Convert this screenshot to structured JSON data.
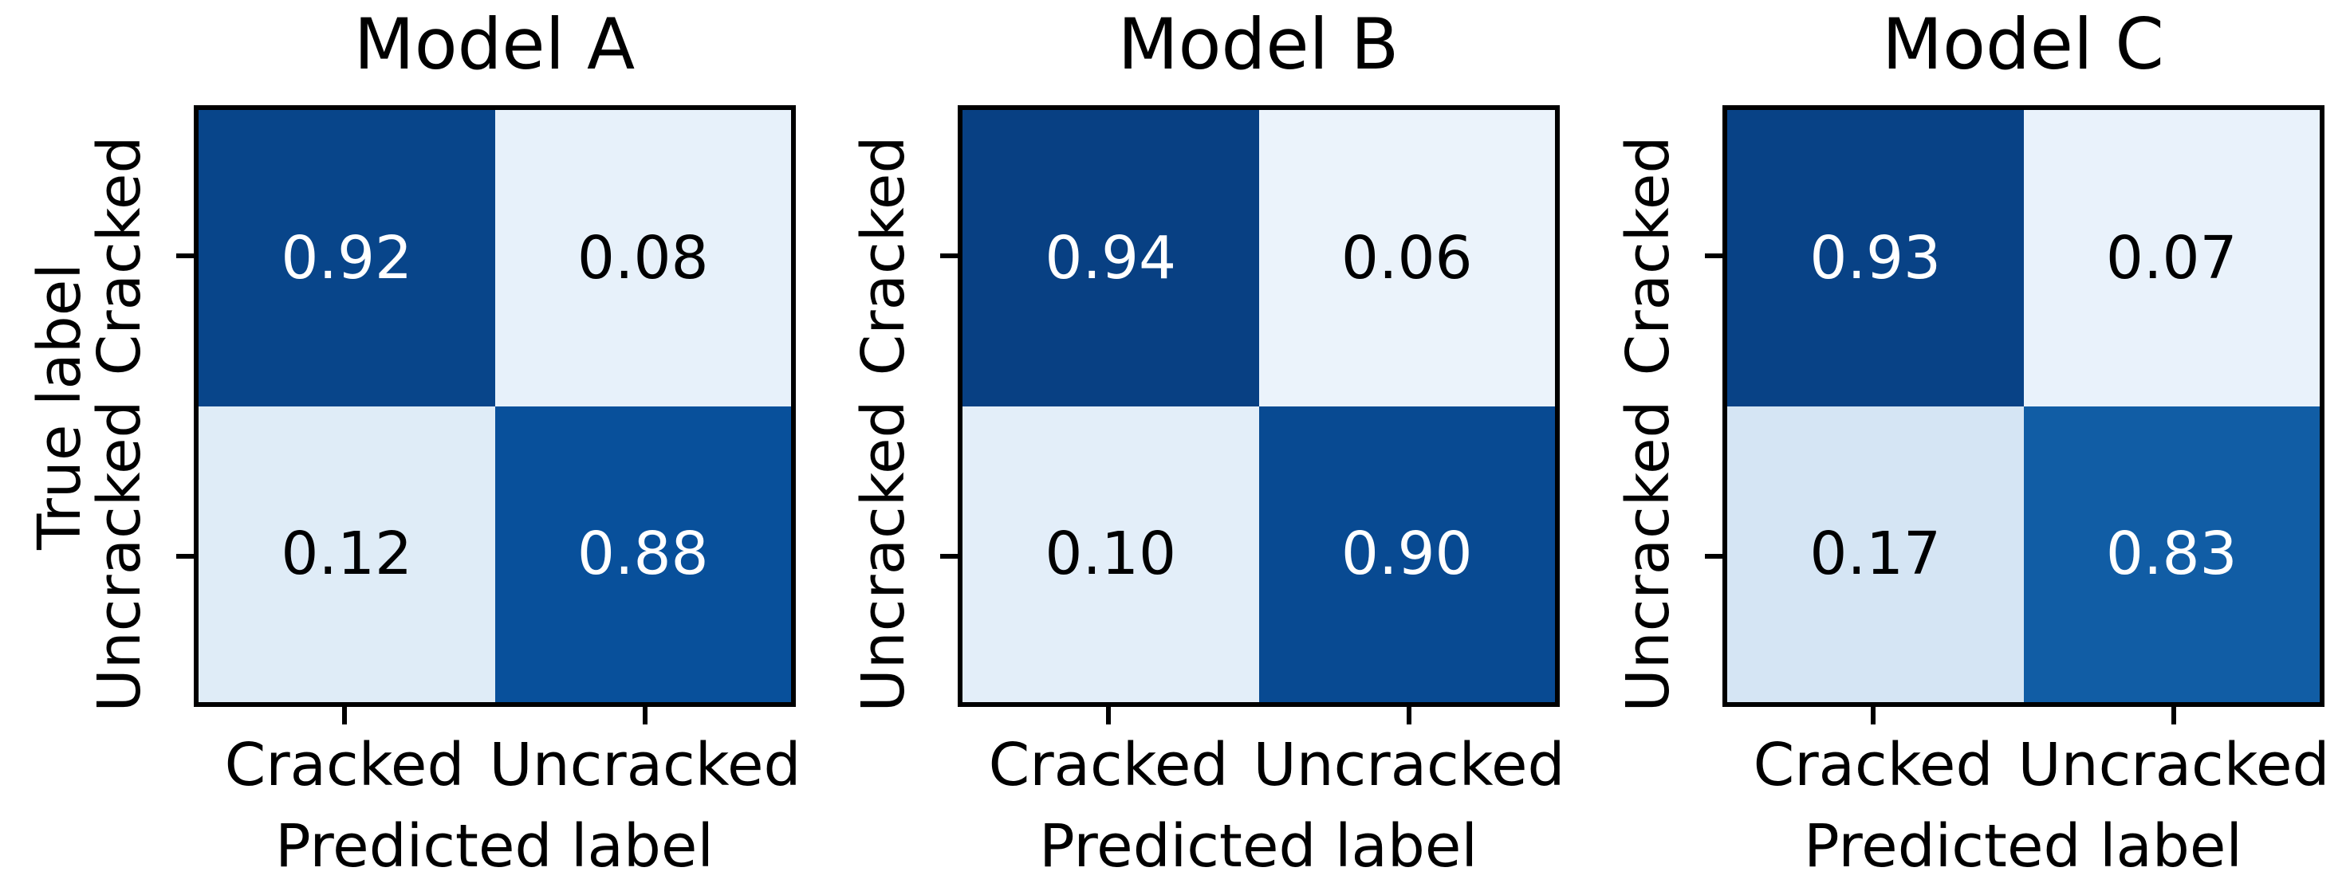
{
  "figure": {
    "background": "#ffffff",
    "text_color": "#000000",
    "border_color": "#000000",
    "colormap": "Blues",
    "panels": [
      {
        "title": "Model A",
        "xlabel": "Predicted label",
        "ylabel": "True label",
        "x_ticks": [
          "Cracked",
          "Uncracked"
        ],
        "y_ticks": [
          "Cracked",
          "Uncracked"
        ],
        "cells": [
          {
            "value": "0.92",
            "bg": "#08458a",
            "fg": "#ffffff"
          },
          {
            "value": "0.08",
            "bg": "#e7f1fa",
            "fg": "#000000"
          },
          {
            "value": "0.12",
            "bg": "#dfecf7",
            "fg": "#000000"
          },
          {
            "value": "0.88",
            "bg": "#08509b",
            "fg": "#ffffff"
          }
        ]
      },
      {
        "title": "Model B",
        "xlabel": "Predicted label",
        "ylabel": "",
        "x_ticks": [
          "Cracked",
          "Uncracked"
        ],
        "y_ticks": [
          "Cracked",
          "Uncracked"
        ],
        "cells": [
          {
            "value": "0.94",
            "bg": "#084083",
            "fg": "#ffffff"
          },
          {
            "value": "0.06",
            "bg": "#ebf3fb",
            "fg": "#000000"
          },
          {
            "value": "0.10",
            "bg": "#e3eef9",
            "fg": "#000000"
          },
          {
            "value": "0.90",
            "bg": "#084a92",
            "fg": "#ffffff"
          }
        ]
      },
      {
        "title": "Model C",
        "xlabel": "Predicted label",
        "ylabel": "",
        "x_ticks": [
          "Cracked",
          "Uncracked"
        ],
        "y_ticks": [
          "Cracked",
          "Uncracked"
        ],
        "cells": [
          {
            "value": "0.93",
            "bg": "#084286",
            "fg": "#ffffff"
          },
          {
            "value": "0.07",
            "bg": "#e9f2fb",
            "fg": "#000000"
          },
          {
            "value": "0.17",
            "bg": "#d5e5f4",
            "fg": "#000000"
          },
          {
            "value": "0.83",
            "bg": "#115da5",
            "fg": "#ffffff"
          }
        ]
      }
    ]
  },
  "chart_data": [
    {
      "type": "heatmap",
      "title": "Model A",
      "xlabel": "Predicted label",
      "ylabel": "True label",
      "x_categories": [
        "Cracked",
        "Uncracked"
      ],
      "y_categories": [
        "Cracked",
        "Uncracked"
      ],
      "values": [
        [
          0.92,
          0.08
        ],
        [
          0.12,
          0.88
        ]
      ],
      "colormap": "Blues",
      "vmin": 0,
      "vmax": 1,
      "colorbar": false,
      "grid": false
    },
    {
      "type": "heatmap",
      "title": "Model B",
      "xlabel": "Predicted label",
      "ylabel": "True label",
      "x_categories": [
        "Cracked",
        "Uncracked"
      ],
      "y_categories": [
        "Cracked",
        "Uncracked"
      ],
      "values": [
        [
          0.94,
          0.06
        ],
        [
          0.1,
          0.9
        ]
      ],
      "colormap": "Blues",
      "vmin": 0,
      "vmax": 1,
      "colorbar": false,
      "grid": false
    },
    {
      "type": "heatmap",
      "title": "Model C",
      "xlabel": "Predicted label",
      "ylabel": "True label",
      "x_categories": [
        "Cracked",
        "Uncracked"
      ],
      "y_categories": [
        "Cracked",
        "Uncracked"
      ],
      "values": [
        [
          0.93,
          0.07
        ],
        [
          0.17,
          0.83
        ]
      ],
      "colormap": "Blues",
      "vmin": 0,
      "vmax": 1,
      "colorbar": false,
      "grid": false
    }
  ]
}
